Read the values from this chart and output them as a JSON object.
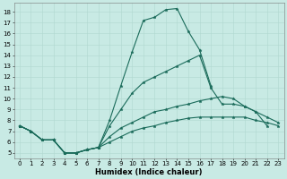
{
  "title": "",
  "xlabel": "Humidex (Indice chaleur)",
  "ylabel": "",
  "bg_color": "#c8eae4",
  "line_color": "#1a6b5a",
  "grid_color": "#b0d8d0",
  "xlim": [
    -0.5,
    23.5
  ],
  "ylim": [
    4.5,
    18.8
  ],
  "yticks": [
    5,
    6,
    7,
    8,
    9,
    10,
    11,
    12,
    13,
    14,
    15,
    16,
    17,
    18
  ],
  "xticks": [
    0,
    1,
    2,
    3,
    4,
    5,
    6,
    7,
    8,
    9,
    10,
    11,
    12,
    13,
    14,
    15,
    16,
    17,
    18,
    19,
    20,
    21,
    22,
    23
  ],
  "lines": [
    {
      "x": [
        0,
        1,
        2,
        3,
        4,
        5,
        6,
        7,
        8,
        9,
        10,
        11,
        12,
        13,
        14,
        15,
        16,
        17
      ],
      "y": [
        7.5,
        7.0,
        6.2,
        6.2,
        5.0,
        5.0,
        5.3,
        5.5,
        8.0,
        11.2,
        14.3,
        17.2,
        17.5,
        18.2,
        18.3,
        16.2,
        14.5,
        11.2
      ]
    },
    {
      "x": [
        0,
        1,
        2,
        3,
        4,
        5,
        6,
        7,
        8,
        9,
        10,
        11,
        12,
        13,
        14,
        15,
        16,
        17,
        18,
        19,
        20,
        21,
        22
      ],
      "y": [
        7.5,
        7.0,
        6.2,
        6.2,
        5.0,
        5.0,
        5.3,
        5.5,
        7.5,
        9.0,
        10.5,
        11.5,
        12.0,
        12.5,
        13.0,
        13.5,
        14.0,
        11.0,
        9.5,
        9.5,
        9.3,
        8.8,
        7.5
      ]
    },
    {
      "x": [
        0,
        1,
        2,
        3,
        4,
        5,
        6,
        7,
        8,
        9,
        10,
        11,
        12,
        13,
        14,
        15,
        16,
        17,
        18,
        19,
        20,
        21,
        22,
        23
      ],
      "y": [
        7.5,
        7.0,
        6.2,
        6.2,
        5.0,
        5.0,
        5.3,
        5.5,
        6.5,
        7.3,
        7.8,
        8.3,
        8.8,
        9.0,
        9.3,
        9.5,
        9.8,
        10.0,
        10.2,
        10.0,
        9.3,
        8.8,
        8.3,
        7.8
      ]
    },
    {
      "x": [
        0,
        1,
        2,
        3,
        4,
        5,
        6,
        7,
        8,
        9,
        10,
        11,
        12,
        13,
        14,
        15,
        16,
        17,
        18,
        19,
        20,
        21,
        22,
        23
      ],
      "y": [
        7.5,
        7.0,
        6.2,
        6.2,
        5.0,
        5.0,
        5.3,
        5.5,
        6.0,
        6.5,
        7.0,
        7.3,
        7.5,
        7.8,
        8.0,
        8.2,
        8.3,
        8.3,
        8.3,
        8.3,
        8.3,
        8.0,
        7.8,
        7.5
      ]
    }
  ],
  "tick_fontsize": 5.0,
  "xlabel_fontsize": 6.0,
  "xlabel_fontweight": "bold",
  "linewidth": 0.8,
  "markersize": 2.5
}
